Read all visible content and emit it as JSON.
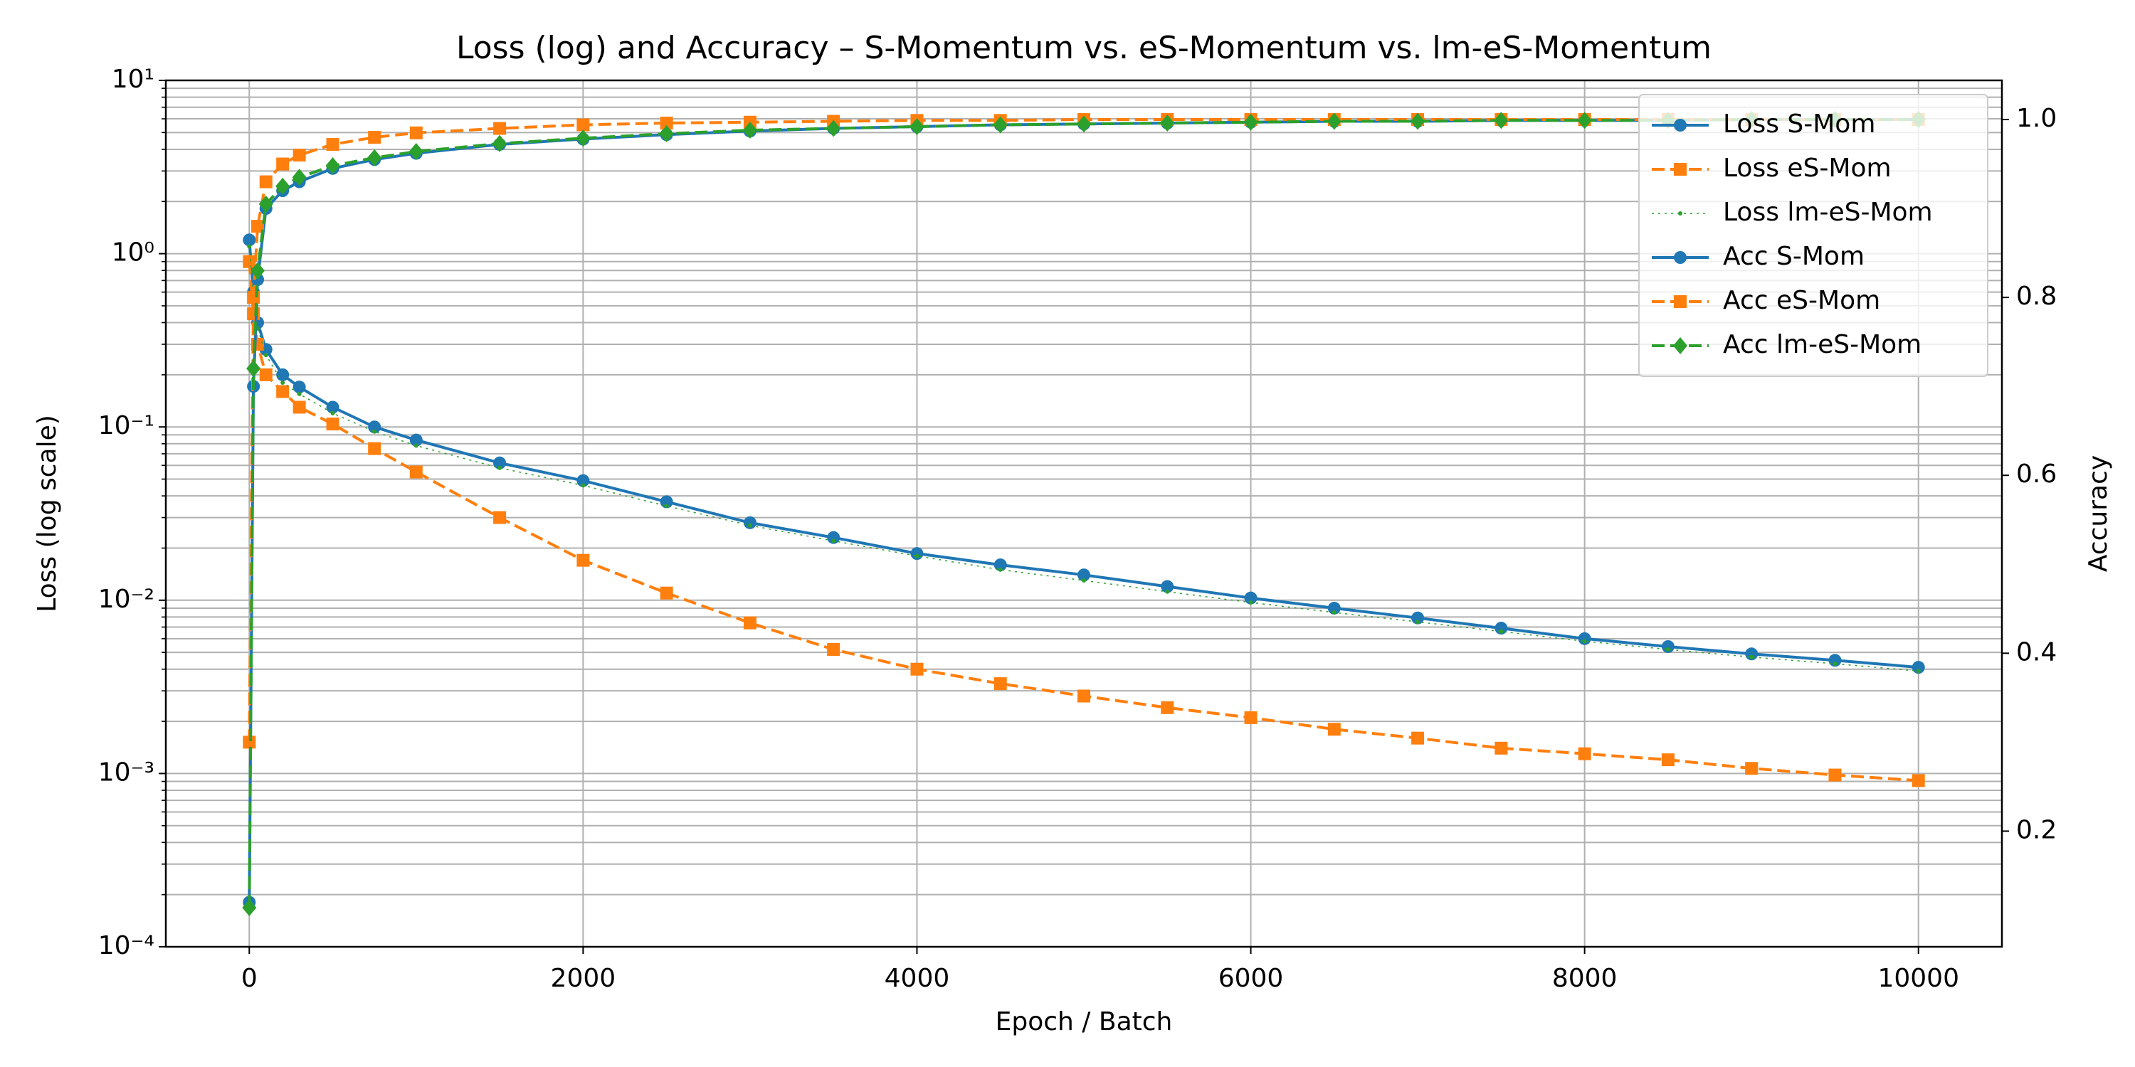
{
  "chart_data": {
    "type": "line",
    "title": "Loss (log) and Accuracy – S-Momentum vs. eS-Momentum vs. lm-eS-Momentum",
    "xlabel": "Epoch / Batch",
    "ylabel": "Loss (log scale)",
    "y2label": "Accuracy",
    "x": [
      0,
      25,
      50,
      100,
      200,
      300,
      500,
      750,
      1000,
      1500,
      2000,
      2500,
      3000,
      3500,
      4000,
      4500,
      5000,
      5500,
      6000,
      6500,
      7000,
      7500,
      8000,
      8500,
      9000,
      9500,
      10000
    ],
    "xlim": [
      -500,
      10500
    ],
    "xticks": [
      0,
      2000,
      4000,
      6000,
      8000,
      10000
    ],
    "ylim": [
      0.0001,
      10
    ],
    "yscale": "log",
    "yticks": [
      {
        "value": 0.0001,
        "label": "10⁻⁴"
      },
      {
        "value": 0.001,
        "label": "10⁻³"
      },
      {
        "value": 0.01,
        "label": "10⁻²"
      },
      {
        "value": 0.1,
        "label": "10⁻¹"
      },
      {
        "value": 1,
        "label": "10⁰"
      },
      {
        "value": 10,
        "label": "10¹"
      }
    ],
    "y2lim": [
      0.07,
      1.044
    ],
    "y2ticks": [
      0.2,
      0.4,
      0.6,
      0.8,
      {
        "value": 1,
        "label": "1.0"
      }
    ],
    "grid": true,
    "legend": "upper right",
    "series": [
      {
        "name": "Loss S-Mom",
        "color": "#1f77b4",
        "marker": "circle",
        "linestyle": "solid",
        "values": [
          1.2,
          0.6,
          0.4,
          0.28,
          0.2,
          0.17,
          0.13,
          0.1,
          0.084,
          0.062,
          0.049,
          0.037,
          0.028,
          0.023,
          0.0186,
          0.016,
          0.014,
          0.012,
          0.0103,
          0.009,
          0.0079,
          0.0069,
          0.006,
          0.0054,
          0.0049,
          0.0045,
          0.0041
        ]
      },
      {
        "name": "Loss eS-Mom",
        "color": "#ff7f0e",
        "marker": "square",
        "linestyle": "dashed",
        "values": [
          0.9,
          0.45,
          0.3,
          0.2,
          0.16,
          0.13,
          0.104,
          0.075,
          0.055,
          0.03,
          0.017,
          0.011,
          0.0074,
          0.0052,
          0.004,
          0.0033,
          0.0028,
          0.0024,
          0.0021,
          0.0018,
          0.0016,
          0.0014,
          0.0013,
          0.0012,
          0.00107,
          0.00098,
          0.00091
        ]
      },
      {
        "name": "Loss lm-eS-Mom",
        "color": "#2ca02c",
        "marker": "point",
        "linestyle": "dotted",
        "values": [
          1.1,
          0.55,
          0.37,
          0.26,
          0.18,
          0.155,
          0.12,
          0.094,
          0.078,
          0.058,
          0.046,
          0.035,
          0.027,
          0.022,
          0.018,
          0.015,
          0.013,
          0.0112,
          0.0097,
          0.0085,
          0.0075,
          0.0066,
          0.0058,
          0.0052,
          0.0047,
          0.0043,
          0.0039
        ]
      },
      {
        "name": "Acc S-Mom",
        "color": "#1f77b4",
        "marker": "circle",
        "linestyle": "solid",
        "axis": "y2",
        "values": [
          0.12,
          0.7,
          0.82,
          0.9,
          0.92,
          0.93,
          0.945,
          0.955,
          0.962,
          0.972,
          0.978,
          0.983,
          0.987,
          0.99,
          0.992,
          0.994,
          0.995,
          0.996,
          0.997,
          0.998,
          0.998,
          0.999,
          0.999,
          0.999,
          1.0,
          1.0,
          1.0
        ]
      },
      {
        "name": "Acc eS-Mom",
        "color": "#ff7f0e",
        "marker": "square",
        "linestyle": "dashed",
        "axis": "y2",
        "values": [
          0.3,
          0.8,
          0.88,
          0.93,
          0.95,
          0.96,
          0.972,
          0.98,
          0.985,
          0.99,
          0.994,
          0.996,
          0.997,
          0.998,
          0.999,
          0.999,
          1.0,
          1.0,
          1.0,
          1.0,
          1.0,
          1.0,
          1.0,
          1.0,
          1.0,
          1.0,
          1.0
        ]
      },
      {
        "name": "Acc lm-eS-Mom",
        "color": "#2ca02c",
        "marker": "diamond",
        "linestyle": "dashed",
        "axis": "y2",
        "values": [
          0.114,
          0.72,
          0.83,
          0.905,
          0.925,
          0.935,
          0.948,
          0.957,
          0.964,
          0.973,
          0.979,
          0.984,
          0.988,
          0.99,
          0.992,
          0.994,
          0.995,
          0.996,
          0.997,
          0.998,
          0.998,
          0.999,
          0.999,
          0.999,
          1.0,
          1.0,
          1.0
        ]
      }
    ]
  }
}
